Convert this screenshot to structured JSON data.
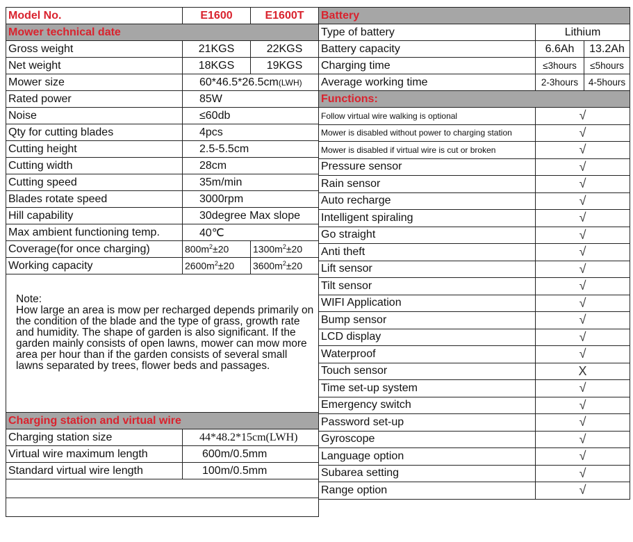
{
  "left": {
    "model_label": "Model No.",
    "models": [
      "E1600",
      "E1600T"
    ],
    "mower_section": "Mower technical date",
    "specs": [
      {
        "label": "Gross weight",
        "values": [
          "21KGS",
          "22KGS"
        ]
      },
      {
        "label": "Net weight",
        "values": [
          "18KGS",
          "19KGS"
        ]
      },
      {
        "label": "Mower size",
        "value": "60*46.5*26.5cm",
        "unit": "(LWH)"
      },
      {
        "label": "Rated power",
        "value": "85W"
      },
      {
        "label": "Noise",
        "value": "≤60db"
      },
      {
        "label": "Qty for cutting blades",
        "value": "4pcs"
      },
      {
        "label": "Cutting height",
        "value": "2.5-5.5cm"
      },
      {
        "label": "Cutting width",
        "value": "28cm"
      },
      {
        "label": "Cutting speed",
        "value": "35m/min"
      },
      {
        "label": "Blades rotate speed",
        "value": "3000rpm"
      },
      {
        "label": "Hill capability",
        "value": "30degree Max slope"
      },
      {
        "label": "Max ambient functioning temp.",
        "value": "40℃"
      }
    ],
    "coverage": {
      "label": "Coverage(for once charging)",
      "values": [
        "800",
        "1300"
      ],
      "unit": "m",
      "sup": "2",
      "tol": "±20"
    },
    "working": {
      "label": "Working capacity",
      "values": [
        "2600",
        "3600"
      ],
      "unit": "m",
      "sup": "2",
      "tol": "±20"
    },
    "note_title": "Note:",
    "note": "How large an area is mow per recharged depends primarily on the condition of the blade and the type of grass, growth rate and humidity. The shape of garden is also significant. If the garden mainly consists of open lawns, mower can mow more area per hour than if the garden consists of several small lawns separated by trees, flower beds and passages.",
    "charging_section": "Charging station and virtual wire",
    "charging": [
      {
        "label": "Charging station size",
        "value": "44*48.2*15cm(LWH)"
      },
      {
        "label": "Virtual wire maximum length",
        "value": "600m/0.5mm"
      },
      {
        "label": "Standard virtual wire length",
        "value": "100m/0.5mm"
      }
    ]
  },
  "right": {
    "battery_section": "Battery",
    "battery": [
      {
        "label": "Type of battery",
        "value": "Lithium"
      },
      {
        "label": "Battery capacity",
        "values": [
          "6.6Ah",
          "13.2Ah"
        ]
      },
      {
        "label": "Charging time",
        "values": [
          "≤3hours",
          "≤5hours"
        ]
      },
      {
        "label": "Average working time",
        "values": [
          "2-3hours",
          "4-5hours"
        ]
      }
    ],
    "functions_section": "Functions:",
    "functions": [
      {
        "label": "Follow virtual wire walking is optional",
        "mark": "√"
      },
      {
        "label": "Mower is disabled without power to charging station",
        "mark": "√"
      },
      {
        "label": "Mower is disabled if virtual wire is cut or broken",
        "mark": "√"
      },
      {
        "label": "Pressure sensor",
        "mark": "√"
      },
      {
        "label": "Rain sensor",
        "mark": "√"
      },
      {
        "label": "Auto recharge",
        "mark": "√"
      },
      {
        "label": "Intelligent spiraling",
        "mark": "√"
      },
      {
        "label": "Go straight",
        "mark": "√"
      },
      {
        "label": "Anti theft",
        "mark": "√"
      },
      {
        "label": "Lift sensor",
        "mark": "√"
      },
      {
        "label": "Tilt sensor",
        "mark": "√"
      },
      {
        "label": "WIFI Application",
        "mark": "√"
      },
      {
        "label": "Bump sensor",
        "mark": "√"
      },
      {
        "label": "LCD display",
        "mark": "√"
      },
      {
        "label": "Waterproof",
        "mark": "√"
      },
      {
        "label": "Touch sensor",
        "mark": "X"
      },
      {
        "label": "Time set-up system",
        "mark": "√"
      },
      {
        "label": "Emergency switch",
        "mark": "√"
      },
      {
        "label": "Password set-up",
        "mark": "√"
      },
      {
        "label": "Gyroscope",
        "mark": "√"
      },
      {
        "label": "Language option",
        "mark": "√"
      },
      {
        "label": "Subarea setting",
        "mark": "√"
      },
      {
        "label": "Range option",
        "mark": "√"
      }
    ]
  }
}
